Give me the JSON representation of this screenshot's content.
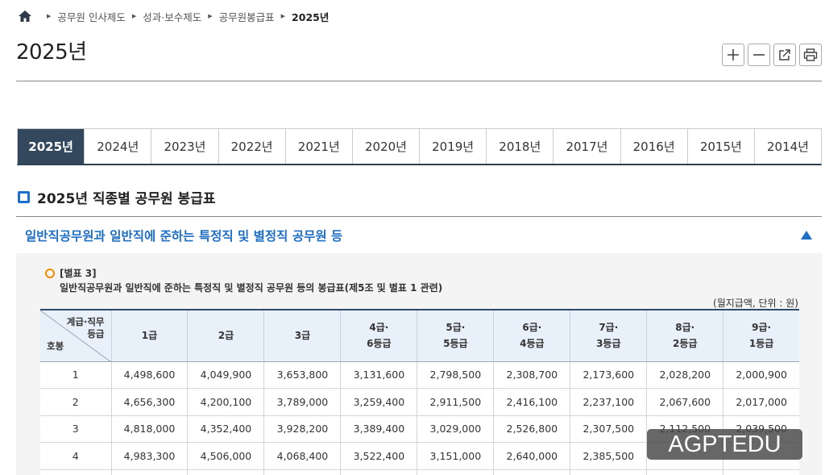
{
  "breadcrumb": {
    "items": [
      "공무원 인사제도",
      "성과·보수제도",
      "공무원봉급표"
    ],
    "current": "2025년"
  },
  "page_title": "2025년",
  "tools": [
    "zoom-in",
    "zoom-out",
    "share",
    "print"
  ],
  "year_tabs": [
    "2025년",
    "2024년",
    "2023년",
    "2022년",
    "2021년",
    "2020년",
    "2019년",
    "2018년",
    "2017년",
    "2016년",
    "2015년",
    "2014년"
  ],
  "active_year": "2025년",
  "section_title": "2025년 직종별 공무원 봉급표",
  "accordion": {
    "title": "일반직공무원과 일반직에 준하는 특정직 및 별정직 공무원 등",
    "annex_label": "[별표 3]",
    "annex_desc": "일반직공무원과 일반직에 준하는 특정직 및 별정직 공무원 등의 봉급표(제5조 및 별표 1 관련)",
    "unit": "(월지급액, 단위 : 원)"
  },
  "table": {
    "corner_top_1": "계급·직무",
    "corner_top_2": "등급",
    "corner_bottom": "호봉",
    "columns": [
      {
        "l1": "1급",
        "l2": ""
      },
      {
        "l1": "2급",
        "l2": ""
      },
      {
        "l1": "3급",
        "l2": ""
      },
      {
        "l1": "4급·",
        "l2": "6등급"
      },
      {
        "l1": "5급·",
        "l2": "5등급"
      },
      {
        "l1": "6급·",
        "l2": "4등급"
      },
      {
        "l1": "7급·",
        "l2": "3등급"
      },
      {
        "l1": "8급·",
        "l2": "2등급"
      },
      {
        "l1": "9급·",
        "l2": "1등급"
      }
    ],
    "rows": [
      {
        "step": "1",
        "values": [
          "4,498,600",
          "4,049,900",
          "3,653,800",
          "3,131,600",
          "2,798,500",
          "2,308,700",
          "2,173,600",
          "2,028,200",
          "2,000,900"
        ]
      },
      {
        "step": "2",
        "values": [
          "4,656,300",
          "4,200,100",
          "3,789,000",
          "3,259,400",
          "2,911,500",
          "2,416,100",
          "2,237,100",
          "2,067,600",
          "2,017,000"
        ]
      },
      {
        "step": "3",
        "values": [
          "4,818,000",
          "4,352,400",
          "3,928,200",
          "3,389,400",
          "3,029,000",
          "2,526,800",
          "2,307,500",
          "2,112,500",
          "2,039,500"
        ]
      },
      {
        "step": "4",
        "values": [
          "4,983,300",
          "4,506,000",
          "4,068,400",
          "3,522,400",
          "3,151,000",
          "2,640,000",
          "2,385,500",
          "",
          ""
        ]
      }
    ]
  },
  "watermark": "AGPTEDU",
  "colors": {
    "active_tab": "#34485d",
    "accent_blue": "#1e6fc4",
    "annex_orange": "#f08c00"
  }
}
